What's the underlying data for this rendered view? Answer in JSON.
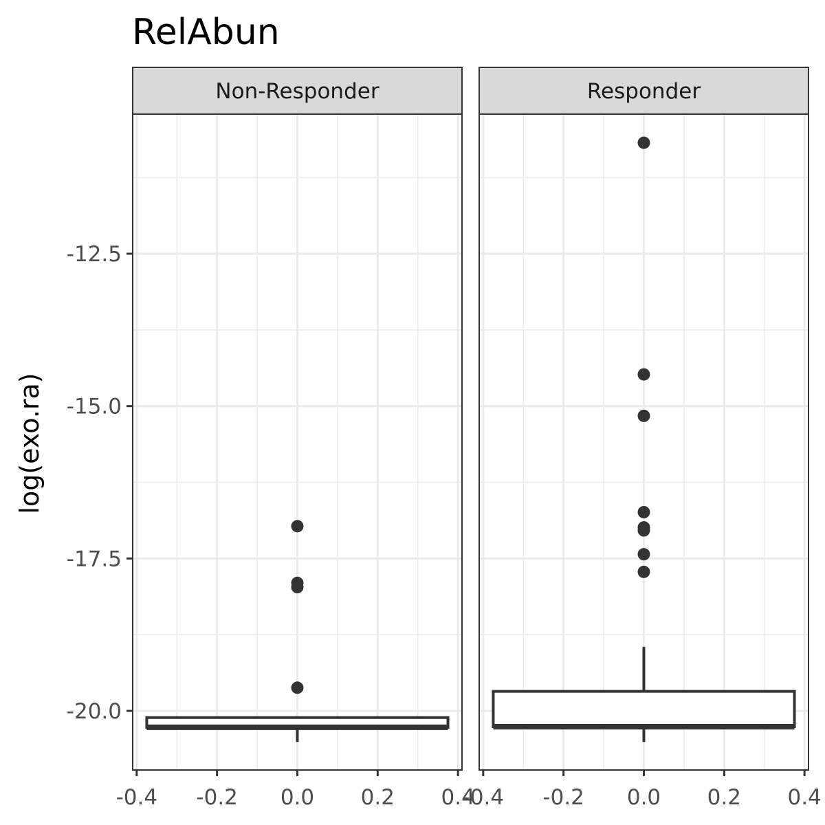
{
  "chart_data": {
    "type": "boxplot",
    "title": "RelAbun",
    "ylabel": "log(exo.ra)",
    "xlabel": "",
    "xlim": [
      -0.41,
      0.41
    ],
    "ylim": [
      -20.97,
      -10.21
    ],
    "x_ticks": [
      "-0.4",
      "-0.2",
      "0.0",
      "0.2",
      "0.4"
    ],
    "x_tick_values": [
      -0.4,
      -0.2,
      0.0,
      0.2,
      0.4
    ],
    "y_ticks": [
      "-12.5",
      "-15.0",
      "-17.5",
      "-20.0"
    ],
    "y_tick_values": [
      -12.5,
      -15.0,
      -17.5,
      -20.0
    ],
    "grid": true,
    "panels": [
      {
        "name": "Non-Responder",
        "box": {
          "xmin": -0.375,
          "xmax": 0.375,
          "lower_whisker": -20.51,
          "q1": -20.27,
          "median": -20.27,
          "q3": -20.11,
          "upper_whisker": -20.11
        },
        "outliers": [
          -16.97,
          -17.9,
          -17.97,
          -19.62
        ]
      },
      {
        "name": "Responder",
        "box": {
          "xmin": -0.375,
          "xmax": 0.375,
          "lower_whisker": -20.51,
          "q1": -20.26,
          "median": -20.26,
          "q3": -19.68,
          "upper_whisker": -18.95
        },
        "outliers": [
          -10.68,
          -14.48,
          -15.16,
          -16.74,
          -16.99,
          -17.04,
          -17.43,
          -17.72
        ]
      }
    ]
  }
}
